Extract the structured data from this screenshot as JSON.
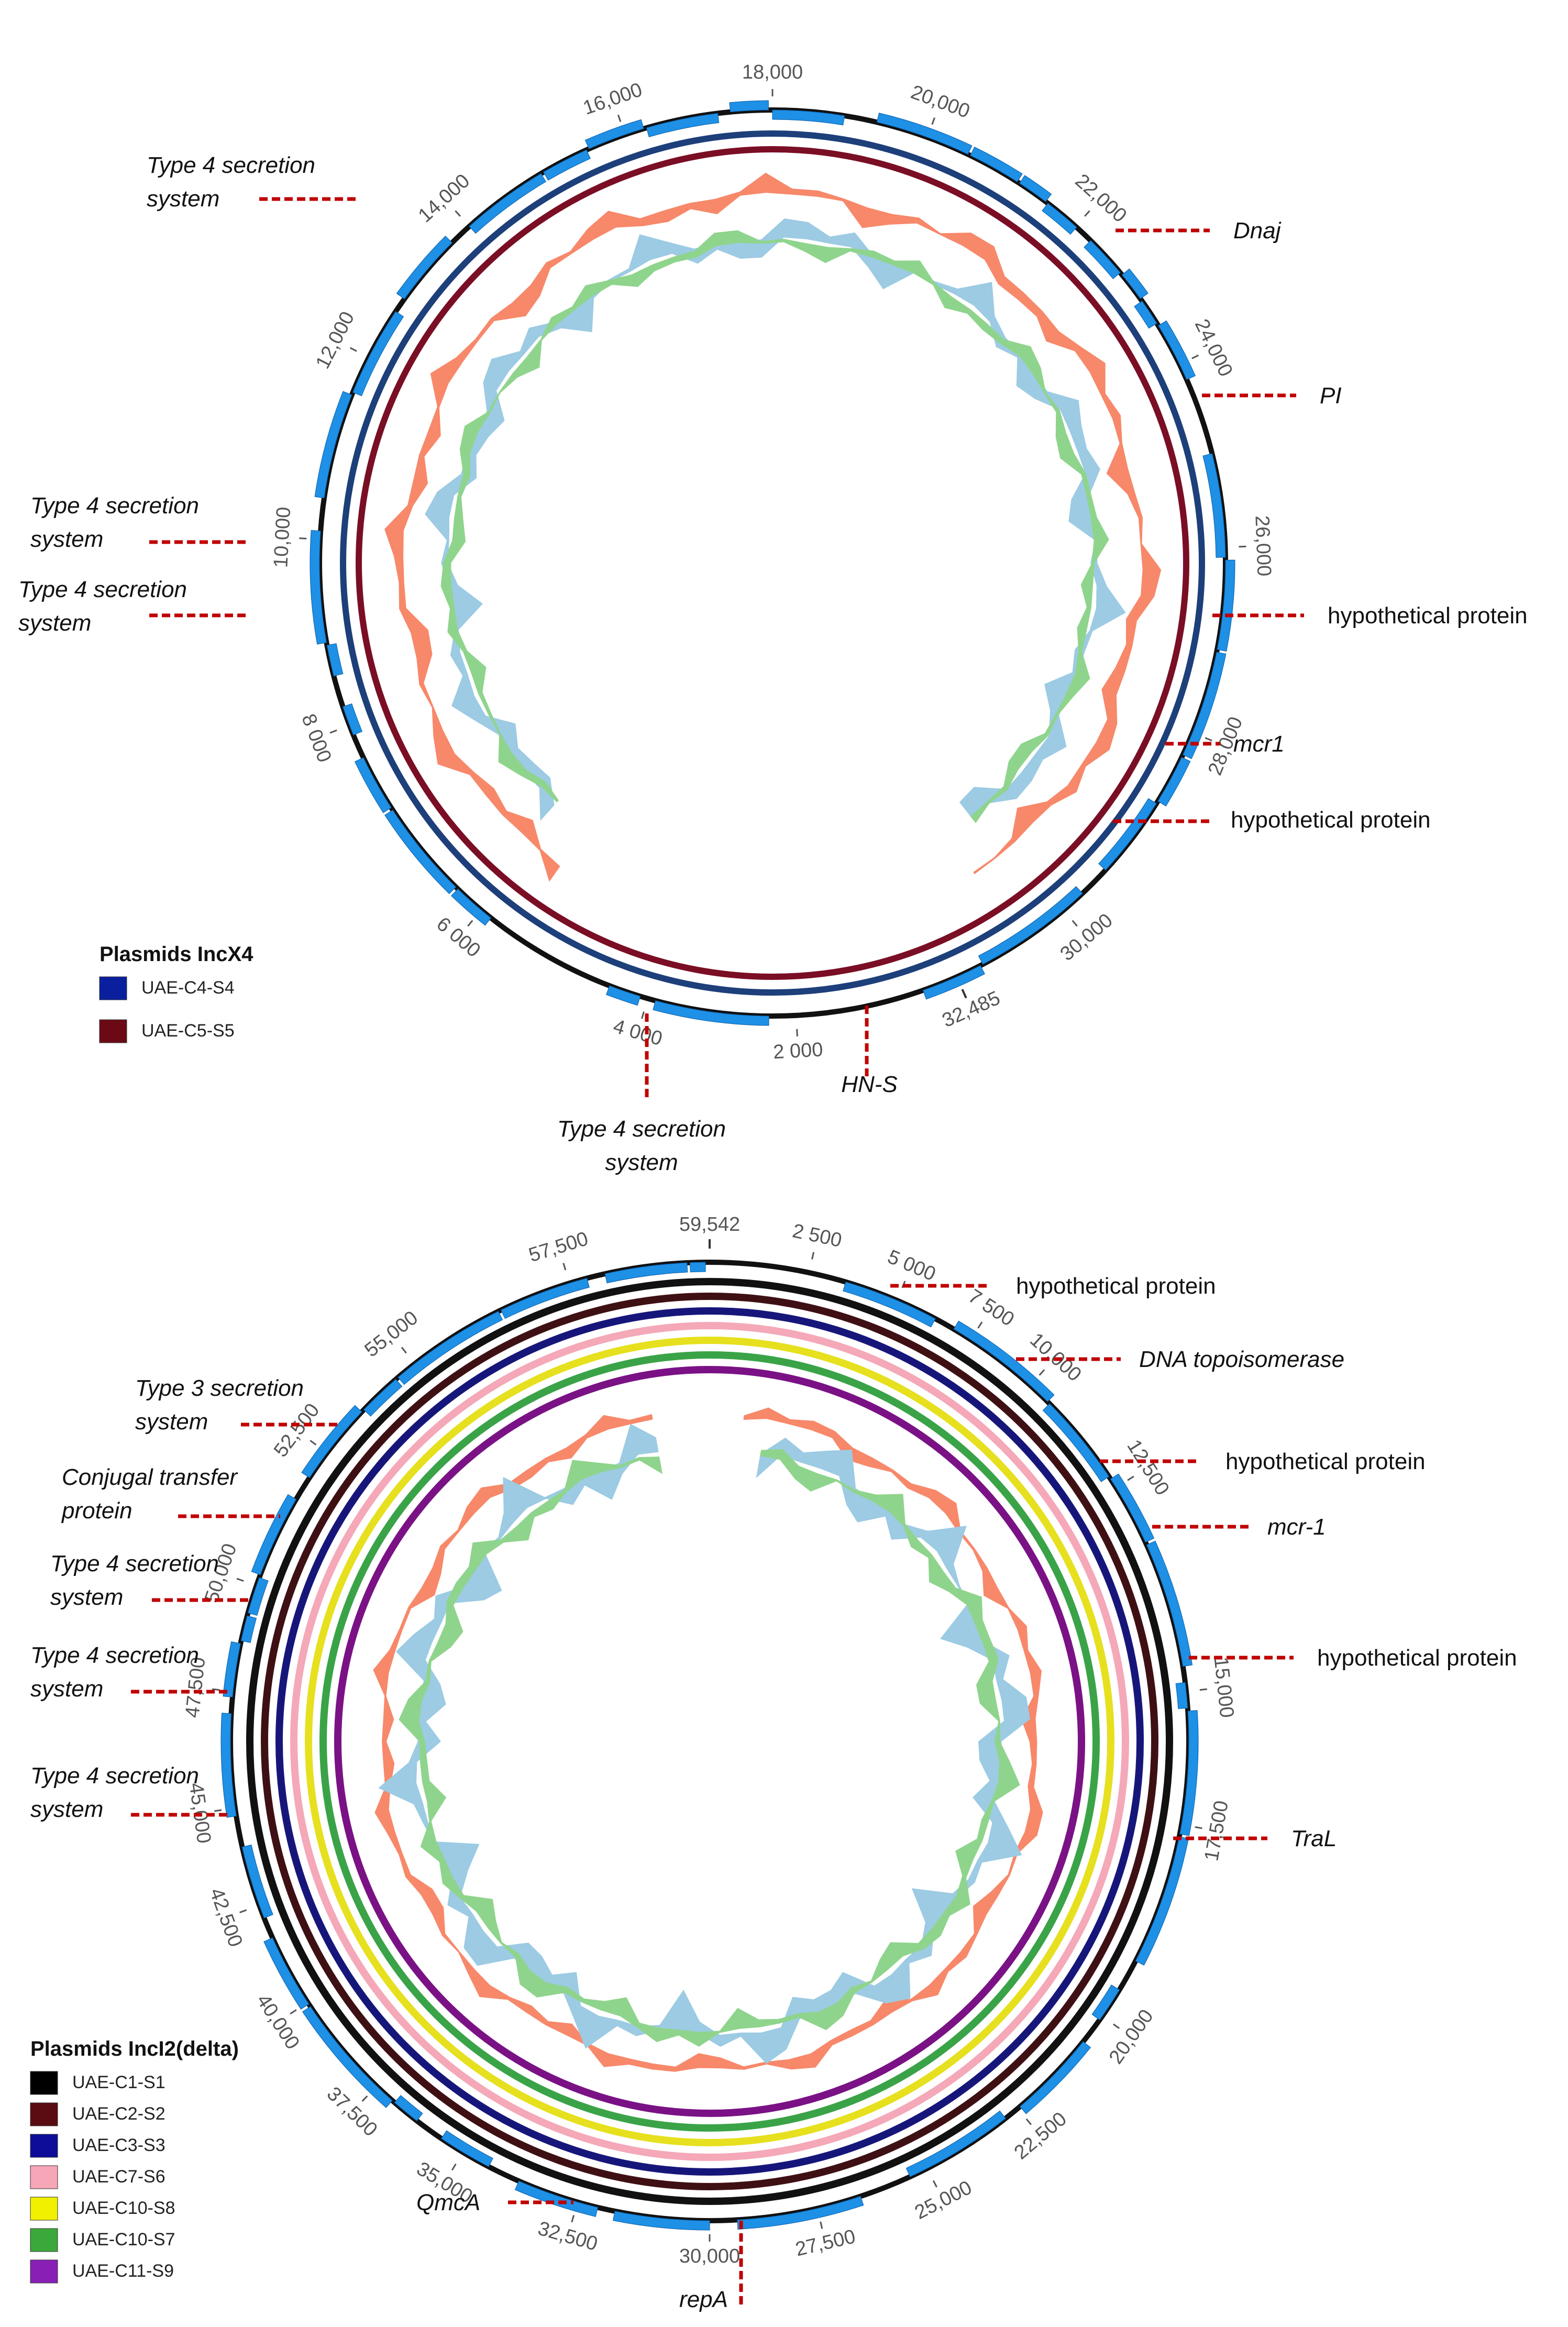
{
  "colors": {
    "gene": "#1e90e6",
    "backbone": "#111111",
    "leader": "#c00000",
    "gc_skew_pos": "#8fd48c",
    "gc_skew_neg": "#9ccbe3",
    "gc_content": "#f7886a"
  },
  "map1": {
    "total_length_label": "32,485",
    "ticks": [
      "2 000",
      "4 000",
      "6 000",
      "8 000",
      "10,000",
      "12,000",
      "14,000",
      "16,000",
      "18,000",
      "20,000",
      "22,000",
      "24,000",
      "26,000",
      "28,000",
      "30,000"
    ],
    "annotations": [
      {
        "label": "Type 4 secretion system",
        "lines": [
          "Type 4 secretion",
          "system"
        ],
        "italic": true
      },
      {
        "label": "Dnaj",
        "lines": [
          "Dnaj"
        ],
        "italic": true
      },
      {
        "label": "PI",
        "lines": [
          "PI"
        ],
        "italic": true
      },
      {
        "label": "Type 4 secretion system",
        "lines": [
          "Type 4 secretion",
          "system"
        ],
        "italic": true
      },
      {
        "label": "Type 4 secretion system",
        "lines": [
          "Type 4 secretion",
          "system"
        ],
        "italic": true
      },
      {
        "label": "hypothetical protein",
        "lines": [
          "hypothetical protein"
        ],
        "italic": false
      },
      {
        "label": "mcr1",
        "lines": [
          "mcr1"
        ],
        "italic": true
      },
      {
        "label": "hypothetical protein",
        "lines": [
          "hypothetical protein"
        ],
        "italic": false
      },
      {
        "label": "Type 4 secretion system",
        "lines": [
          "Type 4 secretion",
          "system"
        ],
        "italic": true
      },
      {
        "label": "HN-S",
        "lines": [
          "HN-S"
        ],
        "italic": true
      }
    ],
    "legend": {
      "title": "Plasmids IncX4",
      "items": [
        {
          "name": "UAE-C4-S4",
          "color": "#0a1f9e"
        },
        {
          "name": "UAE-C5-S5",
          "color": "#6b0a14"
        }
      ]
    },
    "ring_colors": [
      "#1d3f7a",
      "#7a0e25"
    ]
  },
  "map2": {
    "total_length_label": "59,542",
    "ticks": [
      "2 500",
      "5 000",
      "7 500",
      "10,000",
      "12,500",
      "15,000",
      "17,500",
      "20,000",
      "22,500",
      "25,000",
      "27,500",
      "30,000",
      "32,500",
      "35,000",
      "37,500",
      "40,000",
      "42,500",
      "45,000",
      "47,500",
      "50,000",
      "52,500",
      "55,000",
      "57,500"
    ],
    "annotations": [
      {
        "label": "hypothetical protein",
        "lines": [
          "hypothetical protein"
        ],
        "italic": false
      },
      {
        "label": "DNA topoisomerase",
        "lines": [
          "DNA topoisomerase"
        ],
        "italic": true
      },
      {
        "label": "hypothetical protein",
        "lines": [
          "hypothetical protein"
        ],
        "italic": false
      },
      {
        "label": "mcr-1",
        "lines": [
          "mcr-1"
        ],
        "italic": true
      },
      {
        "label": "hypothetical protein",
        "lines": [
          "hypothetical protein"
        ],
        "italic": false
      },
      {
        "label": "TraL",
        "lines": [
          "TraL"
        ],
        "italic": true
      },
      {
        "label": "Type 3 secretion system",
        "lines": [
          "Type 3 secretion",
          "system"
        ],
        "italic": true
      },
      {
        "label": "Conjugal transfer protein",
        "lines": [
          "Conjugal transfer",
          "protein"
        ],
        "italic": true
      },
      {
        "label": "Type 4 secretion system",
        "lines": [
          "Type 4 secretion",
          "system"
        ],
        "italic": true
      },
      {
        "label": "Type 4 secretion system",
        "lines": [
          "Type 4 secretion",
          "system"
        ],
        "italic": true
      },
      {
        "label": "Type 4 secretion system",
        "lines": [
          "Type 4 secretion",
          "system"
        ],
        "italic": true
      },
      {
        "label": "QmcA",
        "lines": [
          "QmcA"
        ],
        "italic": true
      },
      {
        "label": "repA",
        "lines": [
          "repA"
        ],
        "italic": true
      }
    ],
    "legend": {
      "title": "Plasmids IncI2(delta)",
      "items": [
        {
          "name": "UAE-C1-S1",
          "color": "#000000"
        },
        {
          "name": "UAE-C2-S2",
          "color": "#5a0c12"
        },
        {
          "name": "UAE-C3-S3",
          "color": "#0d0d9a"
        },
        {
          "name": "UAE-C7-S6",
          "color": "#f7a6b7"
        },
        {
          "name": "UAE-C10-S8",
          "color": "#f0f000"
        },
        {
          "name": "UAE-C10-S7",
          "color": "#3aa83a"
        },
        {
          "name": "UAE-C11-S9",
          "color": "#8a1fb5"
        }
      ]
    },
    "ring_colors": [
      "#111111",
      "#3e1014",
      "#16167a",
      "#f4a8b8",
      "#e6e01e",
      "#3aa347",
      "#7a1285"
    ]
  }
}
